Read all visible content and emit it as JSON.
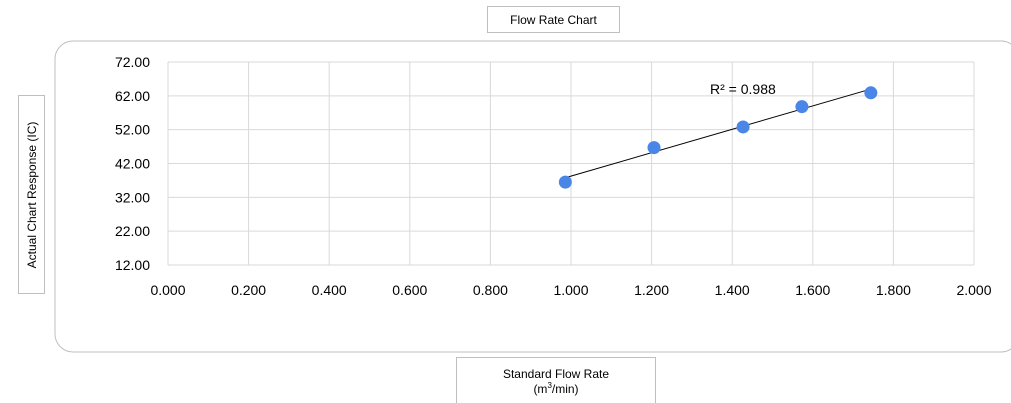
{
  "chart_data": {
    "type": "scatter",
    "title": "Flow Rate Chart",
    "xlabel": {
      "line1": "Standard Flow Rate",
      "unit_pre": "(m",
      "unit_sup": "3",
      "unit_post": "/min)"
    },
    "ylabel": "Actual Chart Response (IC)",
    "xlim": [
      0,
      2
    ],
    "ylim": [
      12,
      72
    ],
    "x_ticks": [
      "0.000",
      "0.200",
      "0.400",
      "0.600",
      "0.800",
      "1.000",
      "1.200",
      "1.400",
      "1.600",
      "1.800",
      "2.000"
    ],
    "y_ticks": [
      "12.00",
      "22.00",
      "32.00",
      "42.00",
      "52.00",
      "62.00",
      "72.00"
    ],
    "points": [
      {
        "x": 0.986,
        "y": 36.5
      },
      {
        "x": 1.206,
        "y": 46.7
      },
      {
        "x": 1.427,
        "y": 52.8
      },
      {
        "x": 1.573,
        "y": 58.8
      },
      {
        "x": 1.744,
        "y": 62.9
      }
    ],
    "trendline": {
      "x1": 0.986,
      "y1": 37.8,
      "x2": 1.744,
      "y2": 64.0
    },
    "r_squared_label": "R² = 0.988",
    "grid": true,
    "point_color": "#4a86e8",
    "line_color": "#000000"
  }
}
